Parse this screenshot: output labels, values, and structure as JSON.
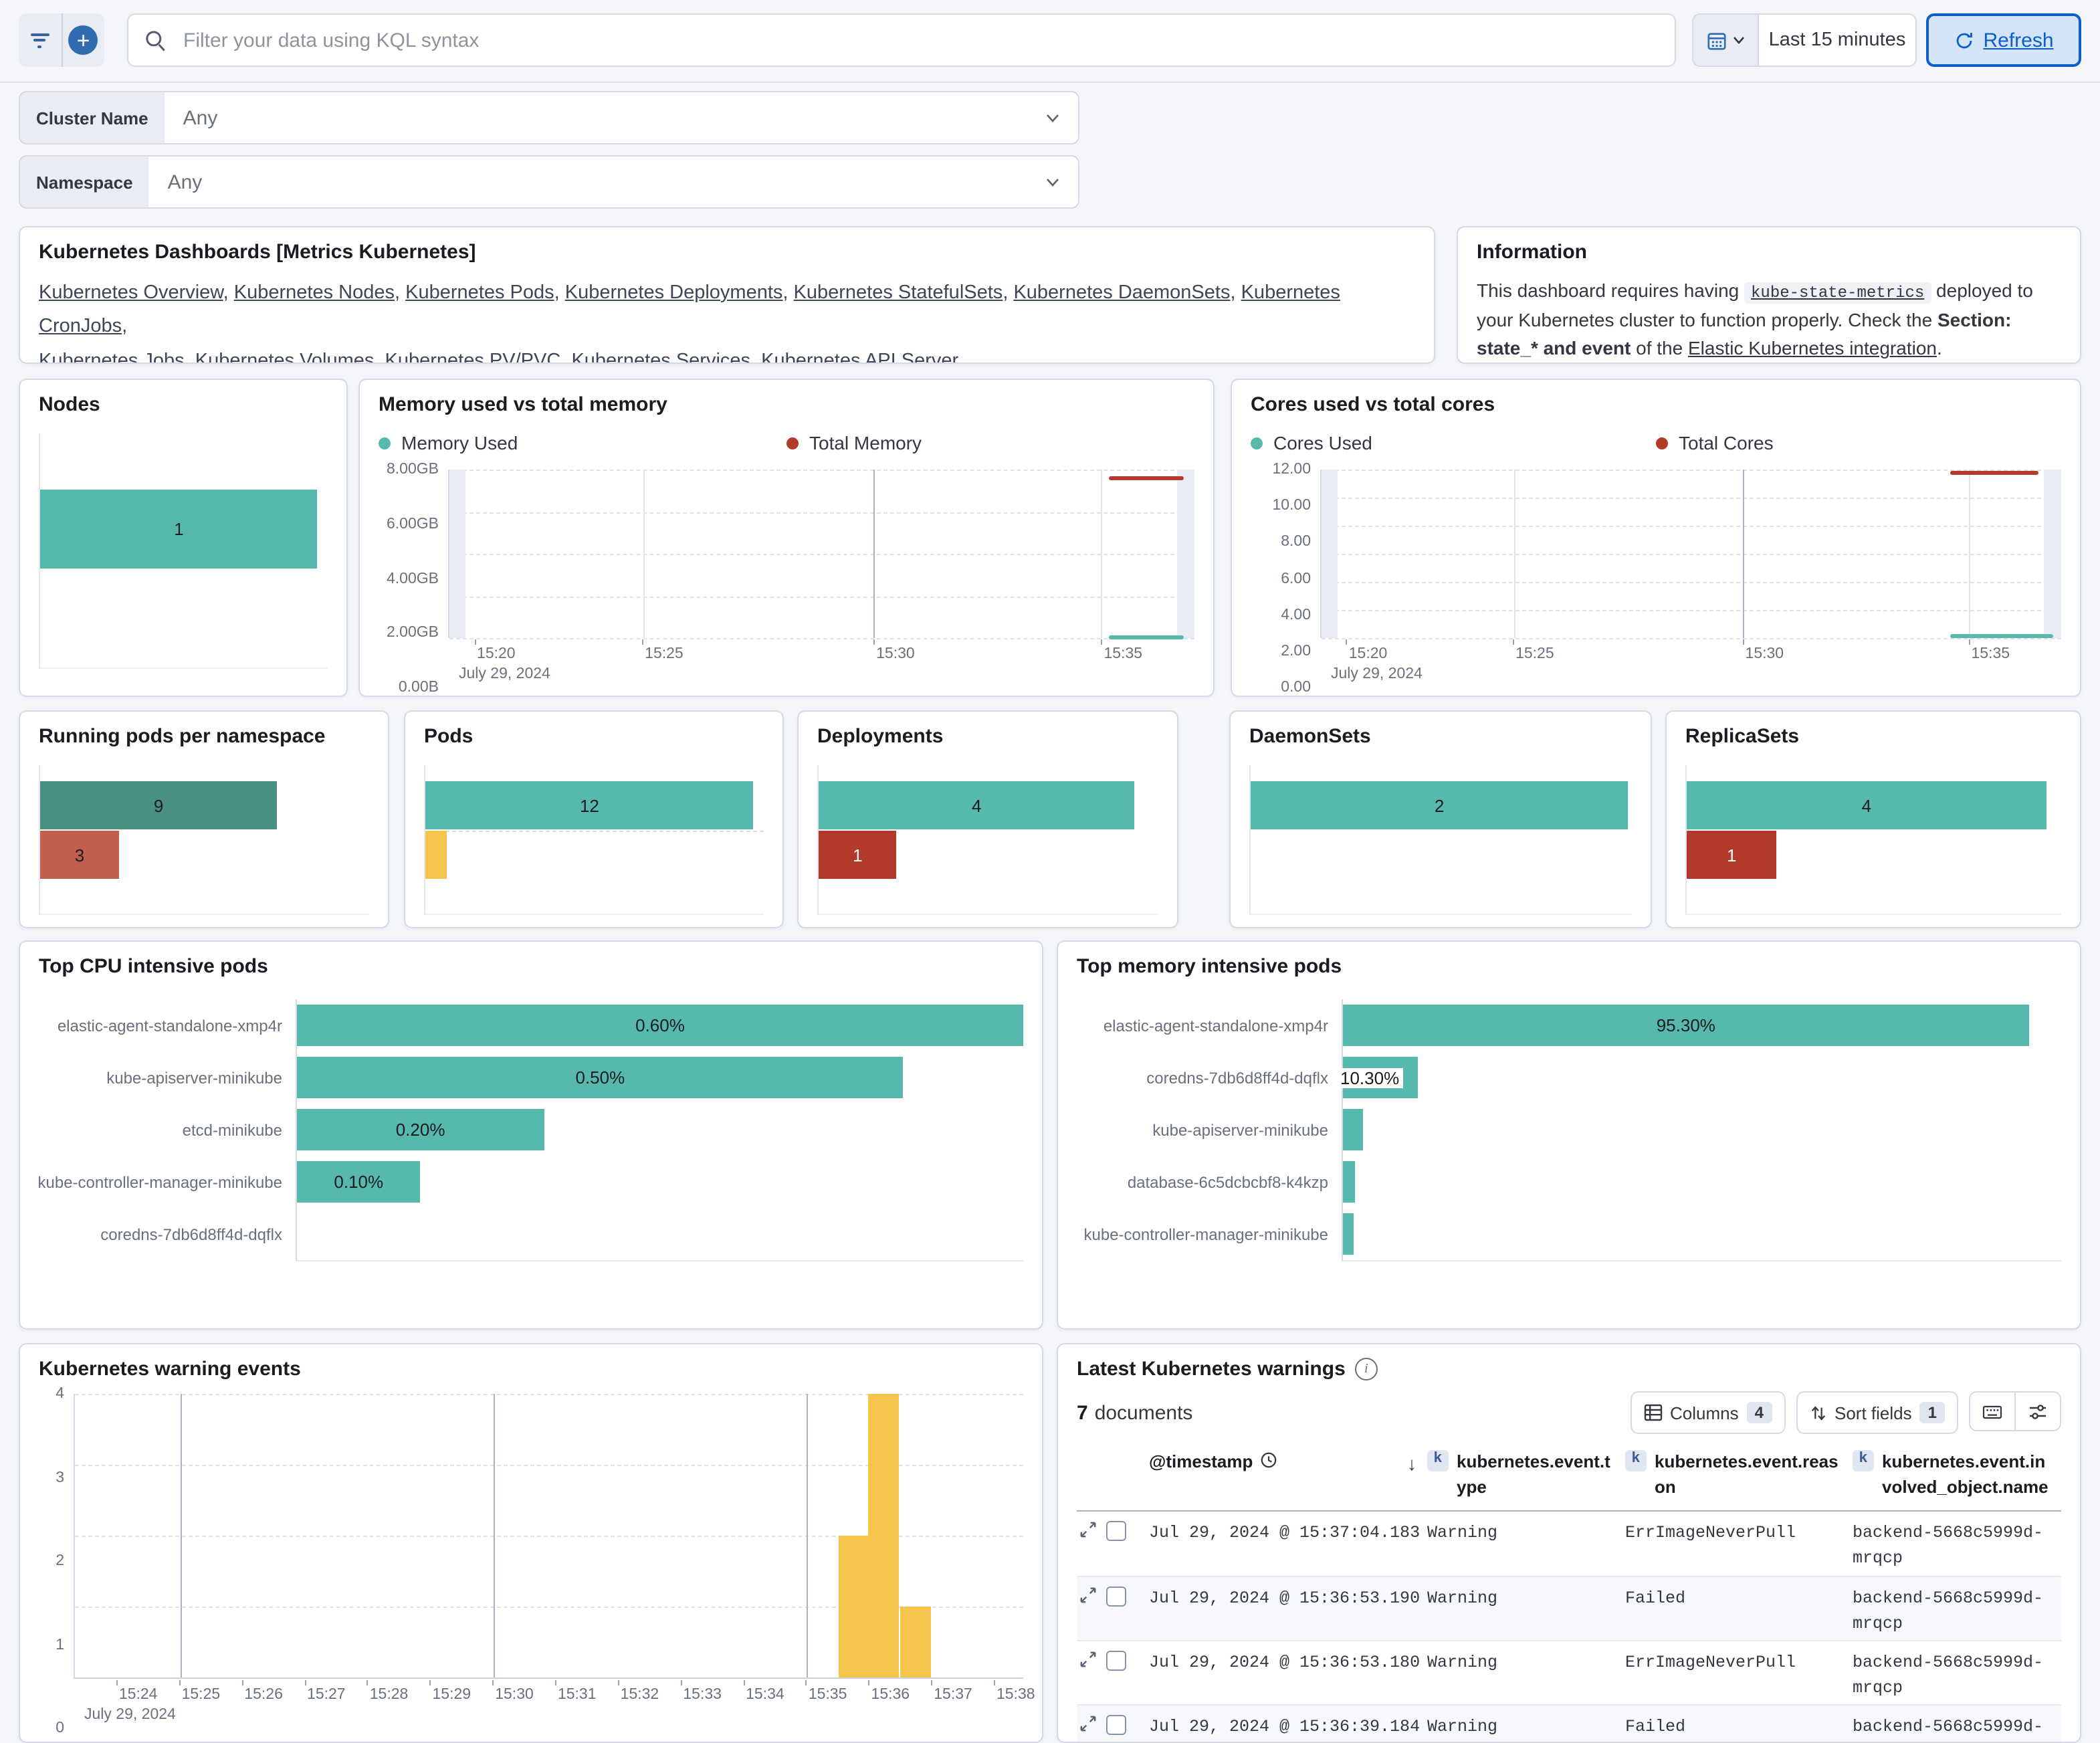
{
  "top_bar": {
    "search_placeholder": "Filter your data using KQL syntax",
    "time_range": "Last 15 minutes",
    "refresh_label": "Refresh",
    "icons": {
      "left_group": [
        "filter-lines-icon",
        "plus-circle-icon"
      ],
      "search": "magnifier-icon",
      "time": [
        "calendar-icon",
        "chevron-down-icon"
      ],
      "refresh": "refresh-icon"
    }
  },
  "filters": [
    {
      "label": "Cluster Name",
      "value": "Any"
    },
    {
      "label": "Namespace",
      "value": "Any"
    }
  ],
  "dashboards_panel": {
    "title": "Kubernetes Dashboards [Metrics Kubernetes]",
    "links_line1": [
      "Kubernetes Overview",
      "Kubernetes Nodes",
      "Kubernetes Pods",
      "Kubernetes Deployments",
      "Kubernetes StatefulSets",
      "Kubernetes DaemonSets",
      "Kubernetes CronJobs"
    ],
    "links_line2": [
      "Kubernetes Jobs",
      "Kubernetes Volumes",
      "Kubernetes PV/PVC",
      "Kubernetes Services",
      "Kubernetes API Server"
    ]
  },
  "info_panel": {
    "title": "Information",
    "text_before": "This dashboard requires having ",
    "code": "kube-state-metrics",
    "text_mid": " deployed to your Kubernetes cluster to function properly. Check the ",
    "bold": "Section: state_* and event",
    "text_after": " of the ",
    "link": "Elastic Kubernetes integration",
    "period": "."
  },
  "colors": {
    "teal": "#57b9ac",
    "dark_green": "#4a9080",
    "salmon": "#c2604d",
    "dark_red": "#b23a2b",
    "red_line": "#b33b2b",
    "yellow": "#f3c64b",
    "accent_blue": "#2f6db0",
    "refresh_blue": "#0d5ec9"
  },
  "chart_data": [
    {
      "key": "nodes",
      "type": "bar",
      "title": "Nodes",
      "bars": [
        {
          "label": "1",
          "value": 1,
          "color": "#57b9ac",
          "text_color": "#1a1c21",
          "width_pct": 96.5
        }
      ]
    },
    {
      "key": "memory",
      "type": "line",
      "title": "Memory used vs total memory",
      "legend": [
        {
          "label": "Memory Used",
          "color": "#57b9ac"
        },
        {
          "label": "Total Memory",
          "color": "#b33b2b"
        }
      ],
      "y_ticks": [
        "8.00GB",
        "6.00GB",
        "4.00GB",
        "2.00GB",
        "0.00B"
      ],
      "ylim": [
        "0.00B",
        "8.00GB"
      ],
      "x_ticks": [
        {
          "label": "15:20",
          "pct": 3.5
        },
        {
          "label": "15:25",
          "pct": 26,
          "grid": true
        },
        {
          "label": "15:30",
          "pct": 57,
          "grid": true,
          "dark": true
        },
        {
          "label": "15:35",
          "pct": 87.5,
          "grid": true
        }
      ],
      "date_label": "July 29, 2024",
      "series": [
        {
          "name": "Total Memory",
          "value_approx": "7.70GB",
          "color": "#b33b2b",
          "y_pct": 4,
          "x0_pct": 88.5,
          "x1_pct": 98.5
        },
        {
          "name": "Memory Used",
          "value_approx": "0.05GB",
          "color": "#57b9ac",
          "y_pct": 98.8,
          "x0_pct": 88.5,
          "x1_pct": 98.5
        }
      ]
    },
    {
      "key": "cores",
      "type": "line",
      "title": "Cores used vs total cores",
      "legend": [
        {
          "label": "Cores Used",
          "color": "#57b9ac"
        },
        {
          "label": "Total Cores",
          "color": "#b33b2b"
        }
      ],
      "y_ticks": [
        "12.00",
        "10.00",
        "8.00",
        "6.00",
        "4.00",
        "2.00",
        "0.00"
      ],
      "ylim": [
        0,
        12
      ],
      "x_ticks": [
        {
          "label": "15:20",
          "pct": 3.5
        },
        {
          "label": "15:25",
          "pct": 26,
          "grid": true
        },
        {
          "label": "15:30",
          "pct": 57,
          "grid": true,
          "dark": true
        },
        {
          "label": "15:35",
          "pct": 87.5,
          "grid": true
        }
      ],
      "date_label": "July 29, 2024",
      "series": [
        {
          "name": "Total Cores",
          "value_approx": "12.00",
          "color": "#b33b2b",
          "y_pct": 0.8,
          "x0_pct": 85,
          "x1_pct": 97
        },
        {
          "name": "Cores Used",
          "value_approx": "0.20",
          "color": "#57b9ac",
          "y_pct": 97.5,
          "x0_pct": 85,
          "x1_pct": 99
        }
      ]
    },
    {
      "key": "running_pods",
      "type": "bar",
      "title": "Running pods per namespace",
      "bars": [
        {
          "label": "9",
          "value": 9,
          "color": "#4a9080",
          "text_color": "#1a1c21",
          "width_pct": 72
        },
        {
          "label": "3",
          "value": 3,
          "color": "#c2604d",
          "text_color": "#1a1c21",
          "width_pct": 24
        }
      ]
    },
    {
      "key": "pods",
      "type": "bar",
      "title": "Pods",
      "bars": [
        {
          "label": "12",
          "value": 12,
          "color": "#57b9ac",
          "text_color": "#1a1c21",
          "width_pct": 97
        },
        {
          "label": "",
          "value": 1,
          "color": "#f3c64b",
          "text_color": "#1a1c21",
          "width_pct": 6.5,
          "dashed_gridline": true
        }
      ]
    },
    {
      "key": "deployments",
      "type": "bar",
      "title": "Deployments",
      "bars": [
        {
          "label": "4",
          "value": 4,
          "color": "#57b9ac",
          "text_color": "#1a1c21",
          "width_pct": 93
        },
        {
          "label": "1",
          "value": 1,
          "color": "#b23a2b",
          "text_color": "#ffffff",
          "width_pct": 23
        }
      ]
    },
    {
      "key": "daemonsets",
      "type": "bar",
      "title": "DaemonSets",
      "bars": [
        {
          "label": "2",
          "value": 2,
          "color": "#57b9ac",
          "text_color": "#1a1c21",
          "width_pct": 99
        }
      ]
    },
    {
      "key": "replicasets",
      "type": "bar",
      "title": "ReplicaSets",
      "bars": [
        {
          "label": "4",
          "value": 4,
          "color": "#57b9ac",
          "text_color": "#1a1c21",
          "width_pct": 96
        },
        {
          "label": "1",
          "value": 1,
          "color": "#b23a2b",
          "text_color": "#ffffff",
          "width_pct": 24
        }
      ]
    },
    {
      "key": "top_cpu",
      "type": "bar",
      "title": "Top CPU intensive pods",
      "xlim_pct": [
        0,
        100
      ],
      "rows": [
        {
          "label": "elastic-agent-standalone-xmp4r",
          "value": "0.60%",
          "width_pct": 100
        },
        {
          "label": "kube-apiserver-minikube",
          "value": "0.50%",
          "width_pct": 83.5
        },
        {
          "label": "etcd-minikube",
          "value": "0.20%",
          "width_pct": 34
        },
        {
          "label": "kube-controller-manager-minikube",
          "value": "0.10%",
          "width_pct": 17
        },
        {
          "label": "coredns-7db6d8ff4d-dqflx",
          "value": "",
          "width_pct": 0
        }
      ]
    },
    {
      "key": "top_memory",
      "type": "bar",
      "title": "Top memory intensive pods",
      "xlim_pct": [
        0,
        100
      ],
      "rows": [
        {
          "label": "elastic-agent-standalone-xmp4r",
          "value": "95.30%",
          "width_pct": 95.5
        },
        {
          "label": "coredns-7db6d8ff4d-dqflx",
          "value": "10.30%",
          "width_pct": 10.5,
          "label_outside": true
        },
        {
          "label": "kube-apiserver-minikube",
          "value": "",
          "width_pct": 2.8
        },
        {
          "label": "database-6c5dcbcbf8-k4kzp",
          "value": "",
          "width_pct": 1.7
        },
        {
          "label": "kube-controller-manager-minikube",
          "value": "",
          "width_pct": 1.5
        }
      ]
    },
    {
      "key": "warning_events",
      "type": "bar",
      "title": "Kubernetes warning events",
      "y_ticks": [
        "4",
        "3",
        "2",
        "1",
        "0"
      ],
      "ylim": [
        0,
        4
      ],
      "x_tick_labels": [
        "15:24",
        "15:25",
        "15:26",
        "15:27",
        "15:28",
        "15:29",
        "15:30",
        "15:31",
        "15:32",
        "15:33",
        "15:34",
        "15:35",
        "15:36",
        "15:37",
        "15:38"
      ],
      "x_first_pct": 4.5,
      "x_step_pct": 6.6,
      "grid_ticks_pct": [
        11.1,
        44.1,
        77.1
      ],
      "date_label": "July 29, 2024",
      "bar_width_pct": 3.2,
      "color": "#f3c64b",
      "bars": [
        {
          "time": "15:35:45",
          "count": 2,
          "left_pct": 80.5,
          "height_pct": 50
        },
        {
          "time": "15:36:15",
          "count": 4,
          "left_pct": 83.7,
          "height_pct": 100
        },
        {
          "time": "15:36:45",
          "count": 1,
          "left_pct": 87.0,
          "height_pct": 25
        }
      ]
    }
  ],
  "warnings_table": {
    "title": "Latest Kubernetes warnings",
    "doc_count": "7",
    "doc_count_label": "documents",
    "columns_button": {
      "label": "Columns",
      "badge": "4"
    },
    "sort_button": {
      "label": "Sort fields",
      "badge": "1"
    },
    "headers": [
      {
        "name": "@timestamp",
        "icon": "clock-icon",
        "sort": "desc"
      },
      {
        "name": "kubernetes.event.type",
        "badge": "k"
      },
      {
        "name": "kubernetes.event.reason",
        "badge": "k"
      },
      {
        "name": "kubernetes.event.involved_object.name",
        "badge": "k"
      }
    ],
    "rows": [
      {
        "timestamp": "Jul 29, 2024 @ 15:37:04.183",
        "type": "Warning",
        "reason": "ErrImageNeverPull",
        "object": "backend-5668c5999d-mrqcp"
      },
      {
        "timestamp": "Jul 29, 2024 @ 15:36:53.190",
        "type": "Warning",
        "reason": "Failed",
        "object": "backend-5668c5999d-mrqcp"
      },
      {
        "timestamp": "Jul 29, 2024 @ 15:36:53.180",
        "type": "Warning",
        "reason": "ErrImageNeverPull",
        "object": "backend-5668c5999d-mrqcp"
      },
      {
        "timestamp": "Jul 29, 2024 @ 15:36:39.184",
        "type": "Warning",
        "reason": "Failed",
        "object": "backend-5668c5999d-"
      }
    ]
  }
}
